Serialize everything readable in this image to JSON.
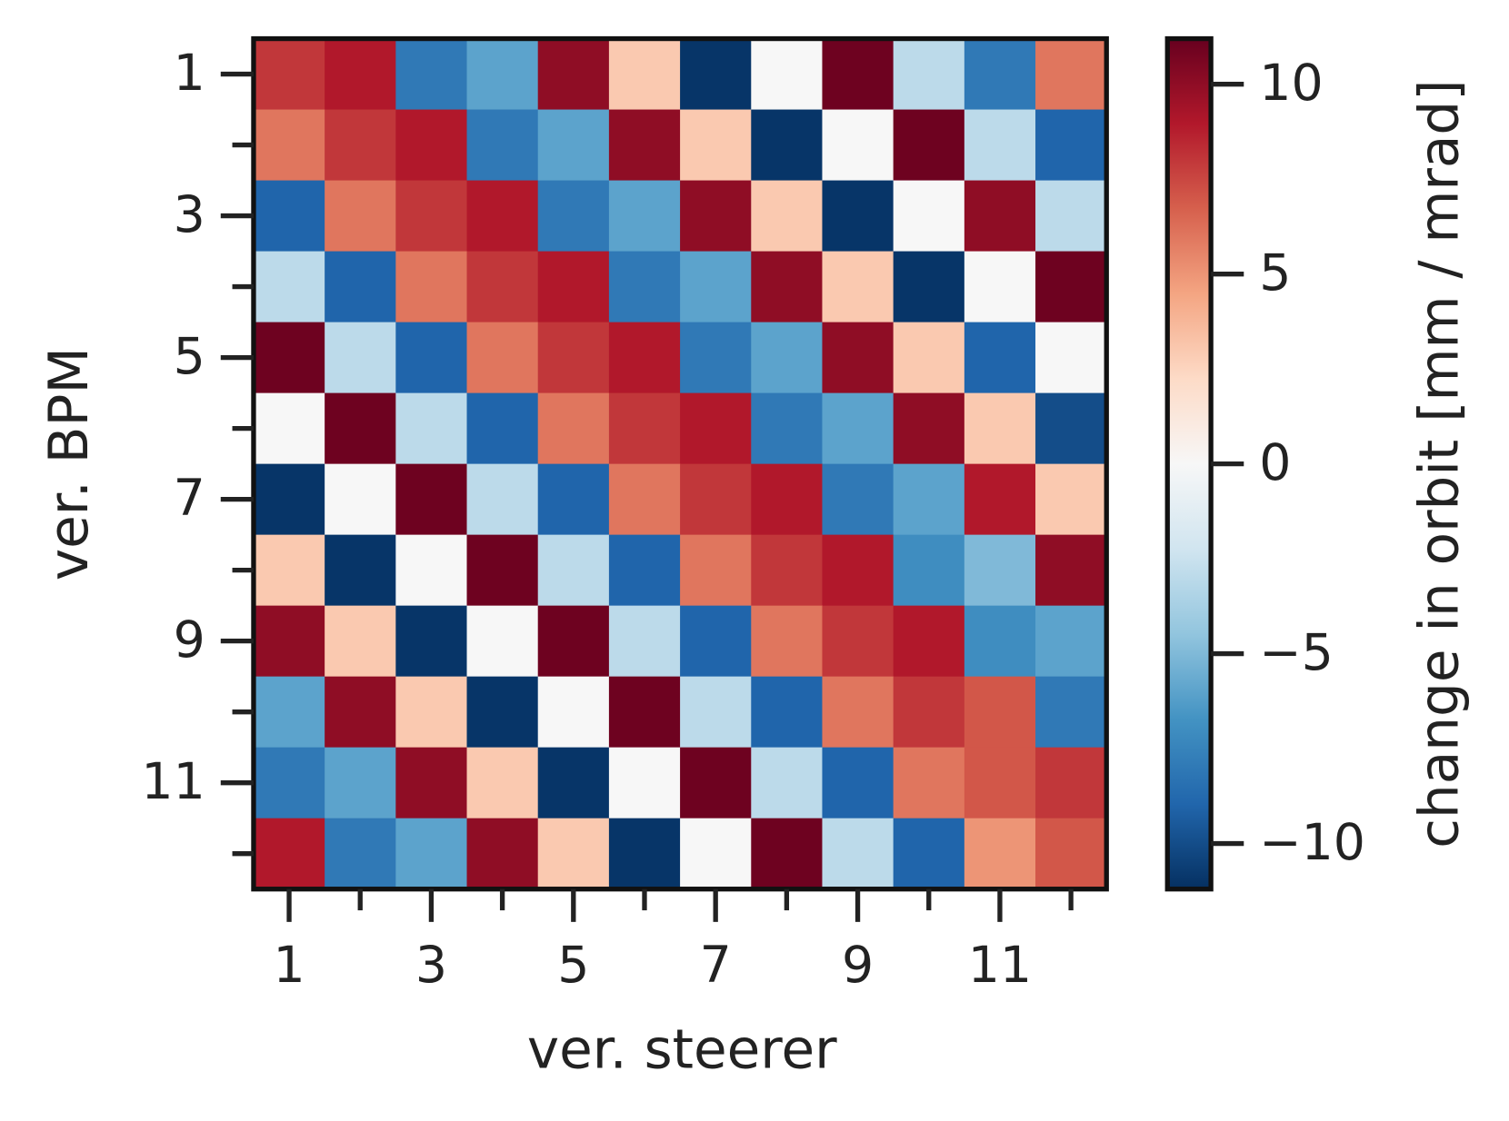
{
  "chart_data": {
    "type": "heatmap",
    "x_label": "ver. steerer",
    "y_label": "ver. BPM",
    "colorbar_label": "change in orbit [mm / mrad]",
    "categories": [
      "1",
      null,
      "3",
      null,
      "5",
      null,
      "7",
      null,
      "9",
      null,
      "11",
      null
    ],
    "y_categories": [
      "1",
      null,
      "3",
      null,
      "5",
      null,
      "7",
      null,
      "9",
      null,
      "11",
      null
    ],
    "values": [
      [
        8,
        9,
        -8,
        -6,
        10,
        3,
        -11,
        0,
        11,
        -3,
        -8,
        6
      ],
      [
        6,
        8,
        9,
        -8,
        -6,
        10,
        3,
        -11,
        0,
        11,
        -3,
        -9
      ],
      [
        -9,
        6,
        8,
        9,
        -8,
        -6,
        10,
        3,
        -11,
        0,
        10,
        -3
      ],
      [
        -3,
        -9,
        6,
        8,
        9,
        -8,
        -6,
        10,
        3,
        -11,
        0,
        11
      ],
      [
        11,
        -3,
        -9,
        6,
        8,
        9,
        -8,
        -6,
        10,
        3,
        -9,
        0
      ],
      [
        0,
        11,
        -3,
        -9,
        6,
        8,
        9,
        -8,
        -6,
        10,
        3,
        -10
      ],
      [
        -11,
        0,
        11,
        -3,
        -9,
        6,
        8,
        9,
        -8,
        -6,
        9,
        3
      ],
      [
        3,
        -11,
        0,
        11,
        -3,
        -9,
        6,
        8,
        9,
        -7,
        -5,
        10
      ],
      [
        10,
        3,
        -11,
        0,
        11,
        -3,
        -9,
        6,
        8,
        9,
        -7,
        -6
      ],
      [
        -6,
        10,
        3,
        -11,
        0,
        11,
        -3,
        -9,
        6,
        8,
        7,
        -8
      ],
      [
        -8,
        -6,
        10,
        3,
        -11,
        0,
        11,
        -3,
        -9,
        6,
        7,
        8
      ],
      [
        9,
        -8,
        -6,
        10,
        3,
        -11,
        0,
        11,
        -3,
        -9,
        5,
        7
      ]
    ],
    "colormap": "RdBu_r",
    "colors": [
      "#053061",
      "#2166ac",
      "#4393c3",
      "#92c5de",
      "#d1e5f0",
      "#f7f7f7",
      "#fddbc7",
      "#f4a582",
      "#d6604d",
      "#b2182b",
      "#67001f"
    ],
    "clim": [
      -11.2,
      11.2
    ],
    "cticks": [
      {
        "value": -10,
        "label": "−10"
      },
      {
        "value": -5,
        "label": "−5"
      },
      0,
      5,
      10
    ]
  }
}
